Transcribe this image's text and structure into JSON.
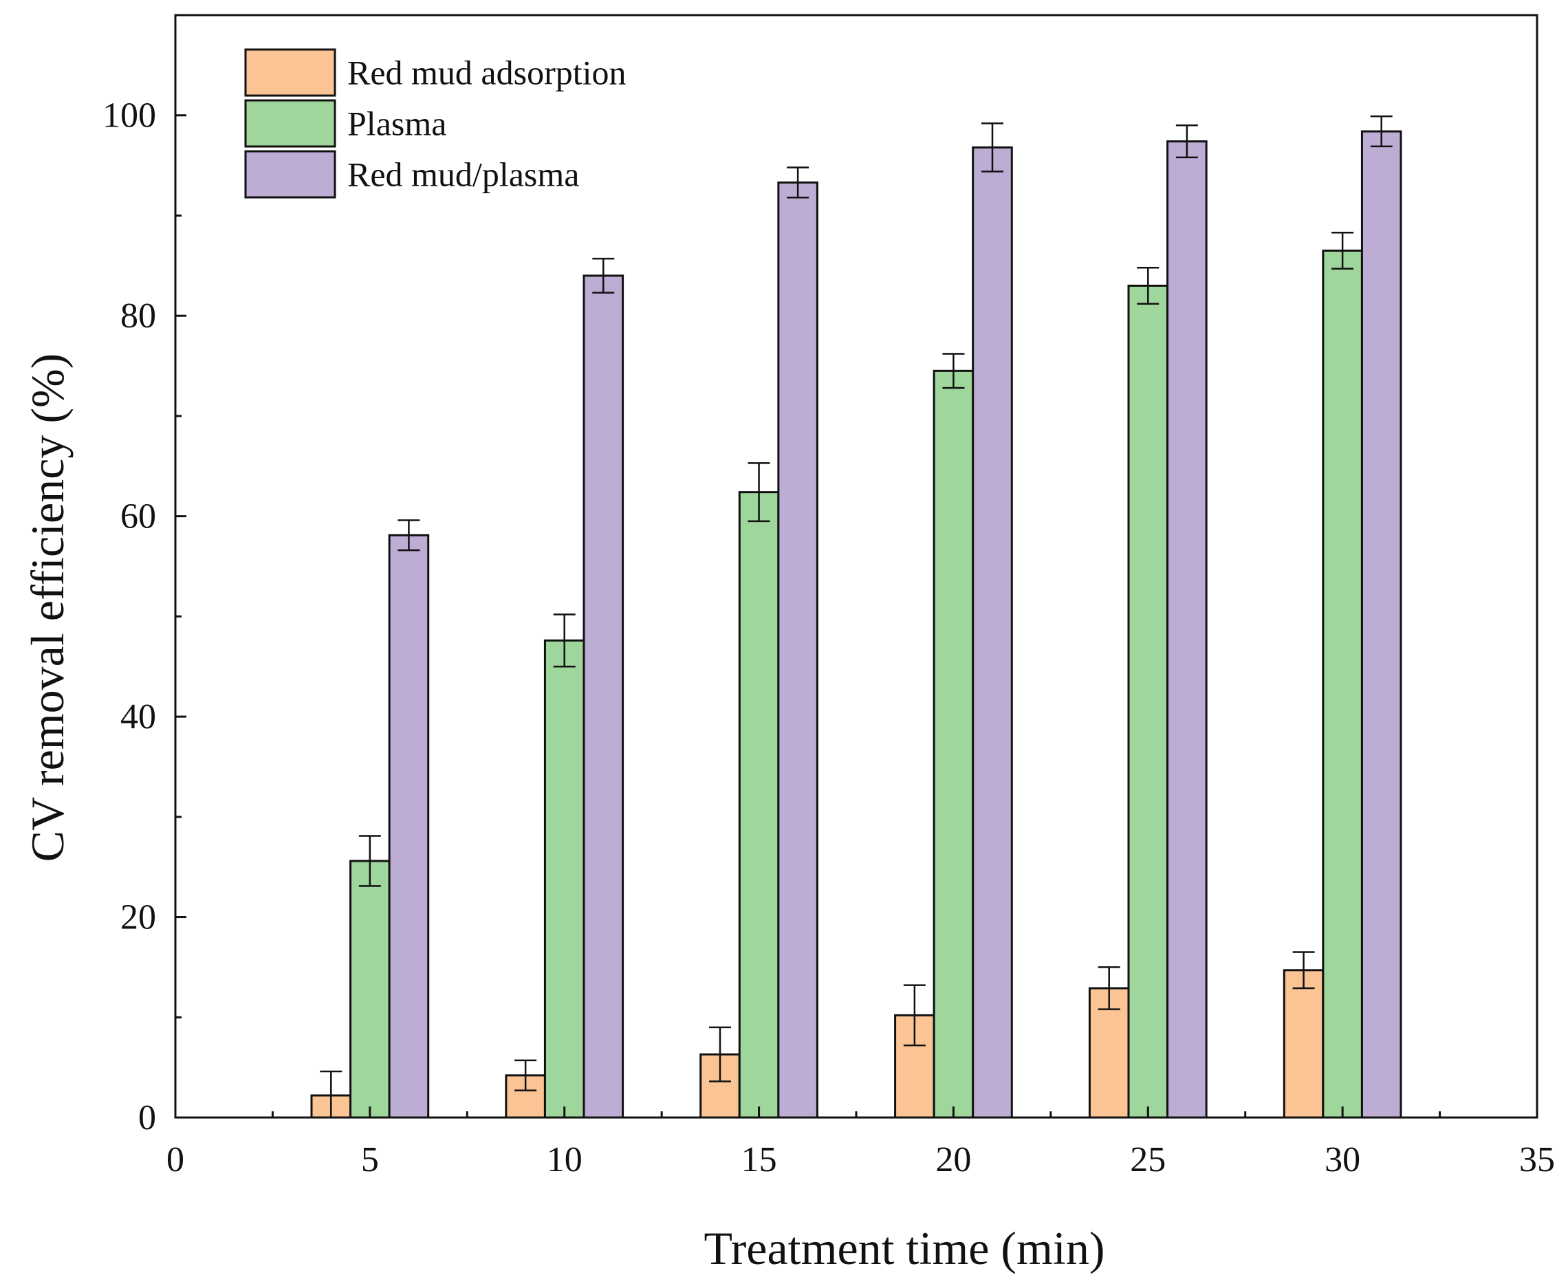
{
  "chart_data": {
    "type": "bar",
    "xlabel": "Treatment time (min)",
    "ylabel": "CV removal efficiency (%)",
    "xlim": [
      0,
      35
    ],
    "ylim": [
      0,
      110
    ],
    "x_ticks": [
      0,
      5,
      10,
      15,
      20,
      25,
      30,
      35
    ],
    "y_ticks": [
      0,
      20,
      40,
      60,
      80,
      100
    ],
    "categories": [
      5,
      10,
      15,
      20,
      25,
      30
    ],
    "legend_position": "top-left",
    "grid": false,
    "series": [
      {
        "name": "Red mud adsorption",
        "color": "#FBC494",
        "values": [
          2.2,
          4.2,
          6.3,
          10.2,
          12.9,
          14.7
        ],
        "errors": [
          2.4,
          1.5,
          2.7,
          3.0,
          2.1,
          1.8
        ]
      },
      {
        "name": "Plasma",
        "color": "#9ED69B",
        "values": [
          25.6,
          47.6,
          62.4,
          74.5,
          83.0,
          86.5
        ],
        "errors": [
          2.5,
          2.6,
          2.9,
          1.7,
          1.8,
          1.8
        ]
      },
      {
        "name": "Red mud/plasma",
        "color": "#BDACD4",
        "values": [
          58.1,
          84.0,
          93.3,
          96.8,
          97.4,
          98.4
        ],
        "errors": [
          1.5,
          1.7,
          1.5,
          2.4,
          1.6,
          1.5
        ]
      }
    ]
  }
}
